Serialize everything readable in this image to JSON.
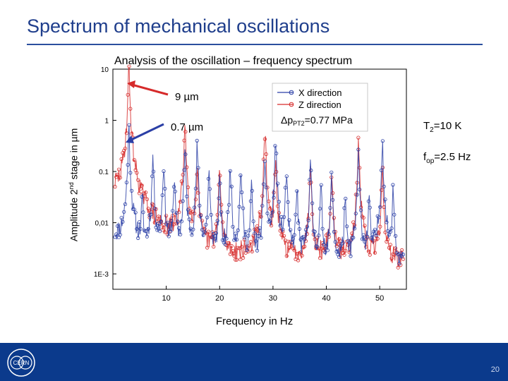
{
  "page": {
    "title": "Spectrum of mechanical oscillations",
    "page_number": "20",
    "logo_text": "CERN",
    "colors": {
      "title": "#1f3e8c",
      "footer": "#0b3a8c",
      "x_series": "#2b3fa6",
      "z_series": "#d62a2a",
      "annotation_arrow": "#d62a2a"
    }
  },
  "annotations": {
    "peak_z": "9 µm",
    "peak_x": "0.7 µm",
    "temperature_base": "T",
    "temperature_sub": "2",
    "temperature_rest": "=10 K",
    "fop_base": "f",
    "fop_sub": "op",
    "fop_rest": "=2.5 Hz",
    "dp_prefix": "Δp",
    "dp_sub": "PT2",
    "dp_rest": "=0.77 MPa"
  },
  "chart_data": {
    "type": "line",
    "title": "Analysis of the oscillation – frequency spectrum",
    "xlabel": "Frequency in Hz",
    "ylabel_parts": {
      "pre": "Amplitude 2",
      "sup": "nd",
      "post": " stage  in µm"
    },
    "xlim": [
      0,
      55
    ],
    "ylim": [
      0.0005,
      10
    ],
    "y_scale": "log",
    "x_ticks": [
      10,
      20,
      30,
      40,
      50
    ],
    "x_tick_labels": [
      "10",
      "20",
      "30",
      "40",
      "50"
    ],
    "y_ticks": [
      10,
      1,
      0.1,
      0.01,
      0.001
    ],
    "y_tick_labels": [
      "10",
      "1",
      "0.1",
      "0,01",
      "1E-3"
    ],
    "legend": {
      "position": "top-center",
      "entries": [
        "X direction",
        "Z direction"
      ]
    },
    "grid": false,
    "series": [
      {
        "name": "X direction",
        "color": "#2b3fa6",
        "marker": "circle",
        "peaks": [
          {
            "x": 3.0,
            "y": 0.7
          },
          {
            "x": 5.5,
            "y": 0.025
          },
          {
            "x": 7.5,
            "y": 0.2
          },
          {
            "x": 9.5,
            "y": 0.15
          },
          {
            "x": 11.5,
            "y": 0.08
          },
          {
            "x": 13.5,
            "y": 0.25
          },
          {
            "x": 15.8,
            "y": 0.3
          },
          {
            "x": 18.0,
            "y": 0.1
          },
          {
            "x": 20.0,
            "y": 0.06
          },
          {
            "x": 22.0,
            "y": 0.15
          },
          {
            "x": 24.0,
            "y": 0.12
          },
          {
            "x": 26.0,
            "y": 0.05
          },
          {
            "x": 28.5,
            "y": 0.2
          },
          {
            "x": 30.5,
            "y": 0.4
          },
          {
            "x": 32.5,
            "y": 0.1
          },
          {
            "x": 34.5,
            "y": 0.05
          },
          {
            "x": 37.0,
            "y": 0.15
          },
          {
            "x": 39.0,
            "y": 0.05
          },
          {
            "x": 41.0,
            "y": 0.08
          },
          {
            "x": 43.5,
            "y": 0.03
          },
          {
            "x": 46.0,
            "y": 0.2
          },
          {
            "x": 48.0,
            "y": 0.03
          },
          {
            "x": 50.5,
            "y": 0.4
          },
          {
            "x": 52.5,
            "y": 0.05
          }
        ]
      },
      {
        "name": "Z direction",
        "color": "#d62a2a",
        "marker": "circle",
        "peaks": [
          {
            "x": 3.0,
            "y": 9
          },
          {
            "x": 13.5,
            "y": 0.8
          },
          {
            "x": 15.8,
            "y": 0.12
          },
          {
            "x": 20.0,
            "y": 0.1
          },
          {
            "x": 28.5,
            "y": 0.5
          },
          {
            "x": 30.5,
            "y": 0.15
          },
          {
            "x": 37.0,
            "y": 0.12
          },
          {
            "x": 41.0,
            "y": 0.08
          },
          {
            "x": 46.0,
            "y": 0.3
          },
          {
            "x": 50.5,
            "y": 0.1
          }
        ]
      }
    ]
  }
}
